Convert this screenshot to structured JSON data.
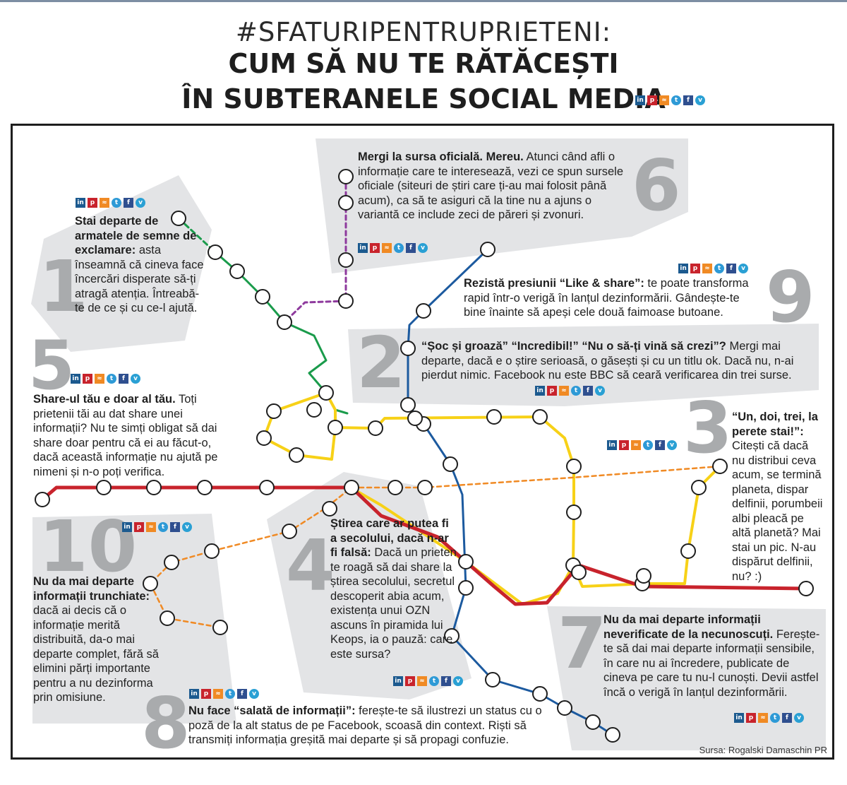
{
  "title": {
    "line1": "#SFATURIPENTRUPRIETENI:",
    "line2": "CUM SĂ NU TE RĂTĂCEȘTI",
    "line3": "ÎN SUBTERANELE SOCIAL MEDIA"
  },
  "social_icons": [
    "in",
    "p",
    "rss",
    "tw",
    "f",
    "v"
  ],
  "colors": {
    "red_line": "#c8232c",
    "yellow_line": "#f7d117",
    "blue_line": "#1c5a9f",
    "green_line": "#1a9b4b",
    "purple_line": "#8e3a9d",
    "orange_line": "#f08a24",
    "panel": "#e3e4e6",
    "number": "#a9abad"
  },
  "tips": {
    "t1": {
      "number": "1",
      "bold": "Stai departe de armatele de semne de exclamare:",
      "text": " asta înseamnă că cineva face încercări disperate să-ți atragă atenția. Întreabă-te de ce și cu ce-l ajută."
    },
    "t2": {
      "number": "2",
      "bold": "“Șoc și groază” “Incredibil!” “Nu o să-ți vină să crezi”?",
      "text": " Mergi mai departe, dacă e o știre serioasă, o găsești și cu un titlu ok. Dacă nu, n-ai pierdut nimic. Facebook nu este BBC să ceară verificarea din trei surse."
    },
    "t3": {
      "number": "3",
      "bold": "“Un, doi, trei, la perete stai!”:",
      "text": " Citești că dacă nu distribui ceva acum, se termină planeta, dispar delfinii, porumbeii albi pleacă pe altă planetă? Mai stai un pic. N-au dispărut delfinii, nu? :)"
    },
    "t4": {
      "number": "4",
      "bold": "Știrea care ar putea fi a secolului, dacă n-ar fi falsă:",
      "text": " Dacă un prieten te roagă să dai share la știrea secolului, secretul descoperit abia acum, existența unui OZN ascuns în piramida lui Keops, ia o pauză: care este sursa?"
    },
    "t5": {
      "number": "5",
      "bold": "Share-ul tău e doar al tău.",
      "text": " Toți prietenii tăi au dat share unei informații? Nu te simți obligat să dai share doar pentru că ei au făcut-o, dacă această informație nu ajută pe nimeni și n-o poți verifica."
    },
    "t6": {
      "number": "6",
      "bold": "Mergi la sursa oficială. Mereu.",
      "text": " Atunci când afli o informație care te interesează, vezi ce spun sursele oficiale (siteuri de știri care ți-au mai folosit până acum), ca să te asiguri că la tine nu a ajuns o variantă ce include zeci de păreri și zvonuri."
    },
    "t7": {
      "number": "7",
      "bold": "Nu da mai departe informații neverificate de la necunoscuți.",
      "text": " Ferește-te să dai mai departe informații sensibile, în care nu ai încredere, publicate de cineva pe care tu nu-l cunoști. Devii astfel încă o verigă în lanțul dezinformării."
    },
    "t8": {
      "number": "8",
      "bold": "Nu face “salată de informații”:",
      "text": " ferește-te să ilustrezi un status cu o poză de la alt status de pe Facebook, scoasă din context. Riști să transmiți informația greșită mai departe și să propagi confuzie."
    },
    "t9": {
      "number": "9",
      "bold": "Rezistă presiunii “Like & share”:",
      "text": " te poate transforma rapid într-o verigă în lanțul dezinformării. Gândește-te bine înainte să apeși cele două faimoase butoane."
    },
    "t10": {
      "number": "10",
      "bold": "Nu da mai departe informații trunchiate:",
      "text": " dacă ai decis că o informație merită distribuită, da-o mai departe complet, fără să elimini părți importante pentru a nu dezinforma prin omisiune."
    }
  },
  "source": "Sursa: Rogalski Damaschin PR"
}
